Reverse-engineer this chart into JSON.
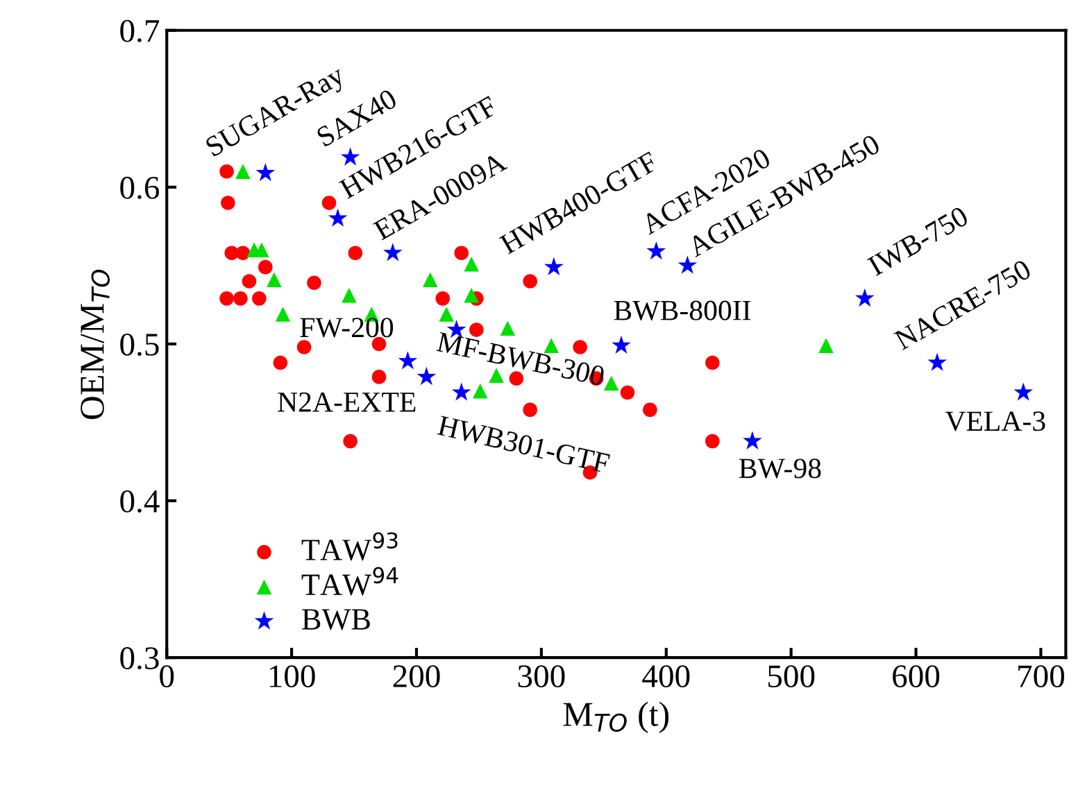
{
  "chart_data": {
    "type": "scatter",
    "xlabel": "M$_{TO}$ (t)",
    "ylabel": "OEM/M$_{TO}$",
    "xlim": [
      0,
      720
    ],
    "ylim": [
      0.3,
      0.7
    ],
    "xticks": [
      0,
      100,
      200,
      300,
      400,
      500,
      600,
      700
    ],
    "yticks": [
      0.3,
      0.4,
      0.5,
      0.6,
      0.7
    ],
    "grid": false,
    "legend": "bottom left",
    "series": [
      {
        "name": "TAW$^{93}$",
        "color": "#ff0000",
        "marker": "circle",
        "x": [
          48,
          49,
          52,
          61,
          79,
          66,
          48,
          59,
          74,
          118,
          130,
          151,
          236,
          291,
          221,
          248,
          170,
          110,
          91,
          170,
          147,
          248,
          280,
          291,
          339,
          331,
          437,
          369,
          387,
          437,
          344
        ],
        "values": [
          0.61,
          0.59,
          0.558,
          0.558,
          0.549,
          0.54,
          0.529,
          0.529,
          0.529,
          0.539,
          0.59,
          0.558,
          0.558,
          0.54,
          0.529,
          0.529,
          0.5,
          0.498,
          0.488,
          0.479,
          0.438,
          0.509,
          0.478,
          0.458,
          0.418,
          0.498,
          0.488,
          0.469,
          0.458,
          0.438,
          0.478
        ]
      },
      {
        "name": "TAW$^{94}$",
        "color": "#00e000",
        "marker": "triangle",
        "x": [
          61,
          70,
          76,
          86,
          93,
          146,
          164,
          211,
          244,
          244,
          224,
          273,
          308,
          264,
          251,
          356,
          528
        ],
        "values": [
          0.61,
          0.56,
          0.56,
          0.541,
          0.519,
          0.531,
          0.519,
          0.541,
          0.551,
          0.531,
          0.519,
          0.51,
          0.499,
          0.48,
          0.47,
          0.475,
          0.499
        ]
      },
      {
        "name": "BWB",
        "color": "#0000ff",
        "marker": "star",
        "x": [
          79,
          147,
          137,
          181,
          310,
          232,
          193,
          208,
          236,
          392,
          417,
          364,
          559,
          617,
          686,
          469
        ],
        "values": [
          0.609,
          0.619,
          0.58,
          0.558,
          0.549,
          0.509,
          0.489,
          0.479,
          0.469,
          0.559,
          0.55,
          0.499,
          0.529,
          0.488,
          0.469,
          0.438
        ]
      }
    ],
    "annotations": [
      {
        "text": "SUGAR-Ray",
        "x": 48,
        "y": 0.61
      },
      {
        "text": "SAX40",
        "x": 147,
        "y": 0.619
      },
      {
        "text": "HWB216-GTF",
        "x": 137,
        "y": 0.58
      },
      {
        "text": "ERA-0009A",
        "x": 181,
        "y": 0.558
      },
      {
        "text": "HWB400-GTF",
        "x": 310,
        "y": 0.549
      },
      {
        "text": "ACFA-2020",
        "x": 392,
        "y": 0.559
      },
      {
        "text": "AGILE-BWB-450",
        "x": 417,
        "y": 0.55
      },
      {
        "text": "IWB-750",
        "x": 559,
        "y": 0.529
      },
      {
        "text": "NACRE-750",
        "x": 617,
        "y": 0.488
      },
      {
        "text": "VELA-3",
        "x": 686,
        "y": 0.469
      },
      {
        "text": "BW-98",
        "x": 469,
        "y": 0.438
      },
      {
        "text": "BWB-800II",
        "x": 364,
        "y": 0.499
      },
      {
        "text": "FW-200",
        "x": 193,
        "y": 0.489
      },
      {
        "text": "MF-BWB-300",
        "x": 232,
        "y": 0.509
      },
      {
        "text": "N2A-EXTE",
        "x": 208,
        "y": 0.479
      },
      {
        "text": "HWB301-GTF",
        "x": 236,
        "y": 0.469
      }
    ]
  }
}
